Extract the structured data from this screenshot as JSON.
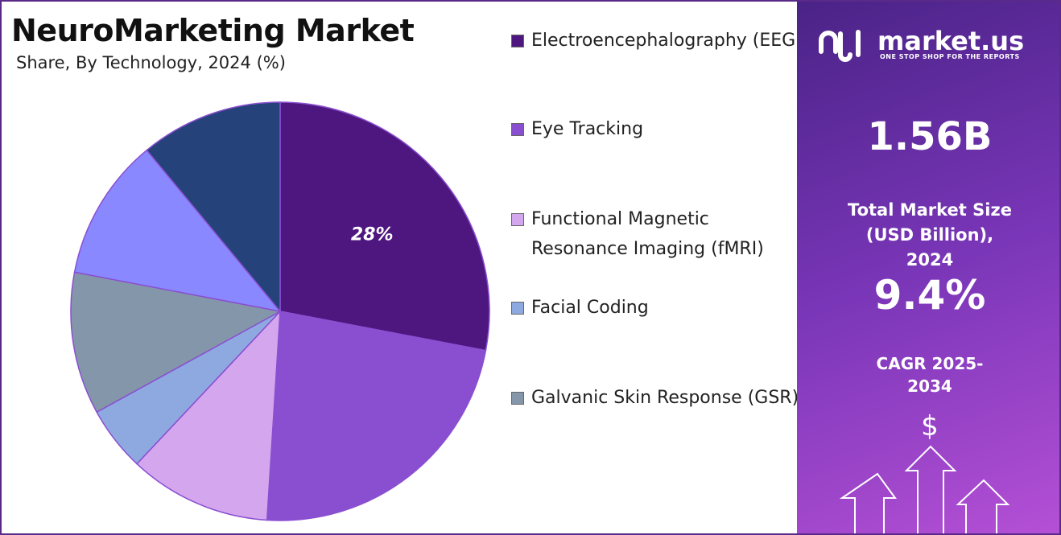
{
  "chart_data": {
    "type": "pie",
    "title": "NeuroMarketing Market",
    "subtitle": "Share, By Technology, 2024 (%)",
    "categories": [
      "Electroencephalography (EEG)",
      "Eye Tracking",
      "Functional Magnetic Resonance Imaging (fMRI)",
      "Facial Coding",
      "Galvanic Skin Response (GSR)",
      null,
      null
    ],
    "values": [
      28,
      23,
      11,
      5,
      11,
      11,
      11
    ],
    "value_labels": [
      "28%",
      null,
      null,
      null,
      null,
      null,
      null
    ],
    "colors": [
      "#4e1780",
      "#8a4fd0",
      "#d3a6ee",
      "#8ea9e0",
      "#8497aa",
      "#8a88ff",
      "#25427a"
    ]
  },
  "panel": {
    "brand": "market.us",
    "tagline": "ONE STOP SHOP FOR THE REPORTS",
    "market_size": "1.56B",
    "market_size_label": "Total Market Size (USD Billion), 2024",
    "cagr": "9.4%",
    "cagr_label": "CAGR 2025-2034",
    "icon_text": "$"
  }
}
